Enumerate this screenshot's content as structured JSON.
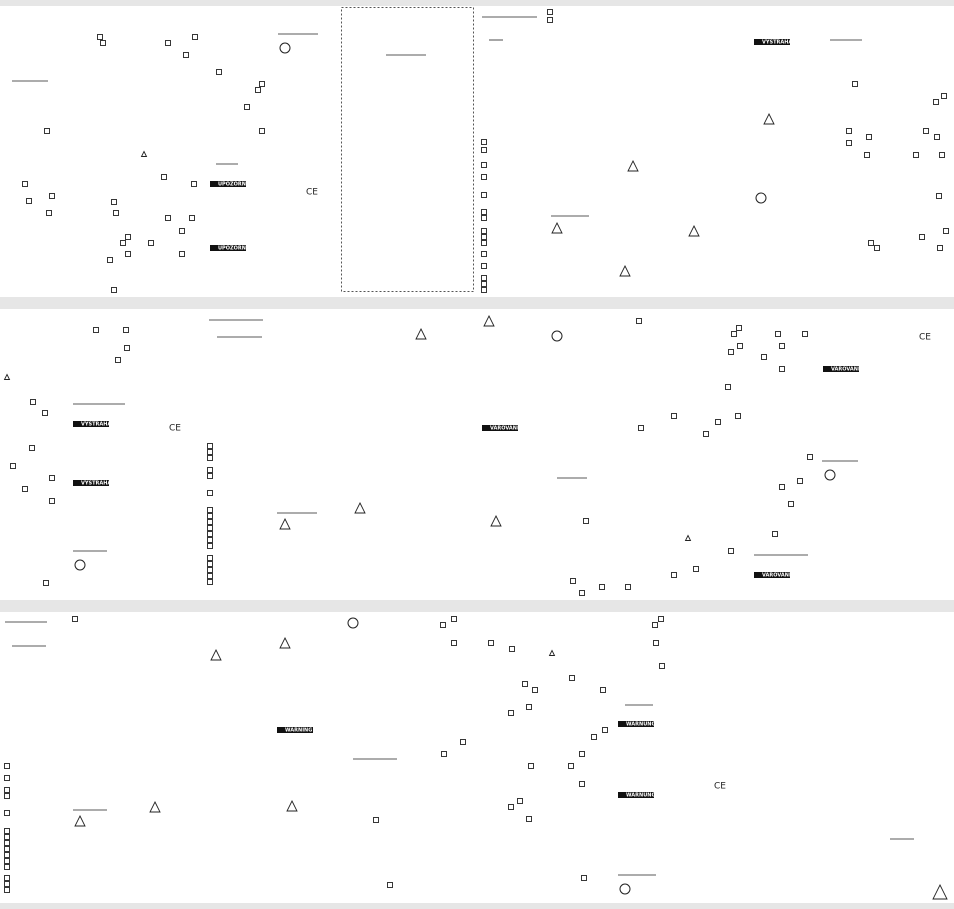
{
  "warning_labels": [
    "UPOZORNENIE",
    "UPOZORNENIE",
    "VÝSTRAHA",
    "VÝSTRAHA",
    "VÝSTRAHA",
    "VAROVANIE",
    "VAROVANIE",
    "VAROVANIE",
    "WARNING",
    "WARNUNG",
    "WARNUNG"
  ],
  "ce_marks": [
    "CE",
    "CE",
    "CE",
    "CE"
  ]
}
